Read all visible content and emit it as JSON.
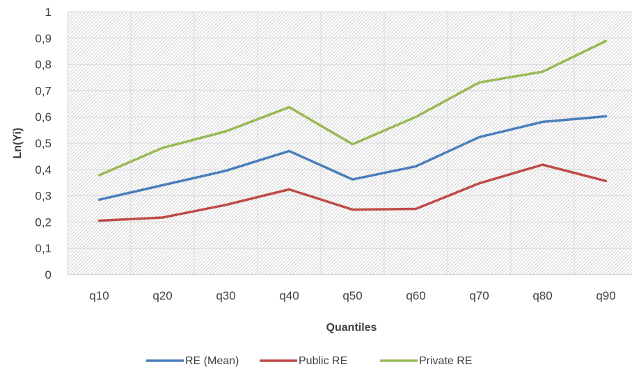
{
  "chart_data": {
    "type": "line",
    "title": "",
    "xlabel": "Quantiles",
    "ylabel": "Ln(Yi)",
    "categories": [
      "q10",
      "q20",
      "q30",
      "q40",
      "q50",
      "q60",
      "q70",
      "q80",
      "q90"
    ],
    "ylim": [
      0,
      1
    ],
    "yticks": [
      "0",
      "0,1",
      "0,2",
      "0,3",
      "0,4",
      "0,5",
      "0,6",
      "0,7",
      "0,8",
      "0,9",
      "1"
    ],
    "grid": true,
    "legend_position": "bottom",
    "series": [
      {
        "name": "RE (Mean)",
        "color": "#4A7EBB",
        "values": [
          0.285,
          0.34,
          0.395,
          0.47,
          0.362,
          0.412,
          0.523,
          0.581,
          0.602
        ]
      },
      {
        "name": "Public RE",
        "color": "#BE4B48",
        "values": [
          0.205,
          0.217,
          0.265,
          0.324,
          0.247,
          0.25,
          0.347,
          0.418,
          0.356
        ]
      },
      {
        "name": "Private RE",
        "color": "#98B954",
        "values": [
          0.378,
          0.482,
          0.545,
          0.637,
          0.496,
          0.6,
          0.731,
          0.772,
          0.889
        ]
      }
    ]
  }
}
